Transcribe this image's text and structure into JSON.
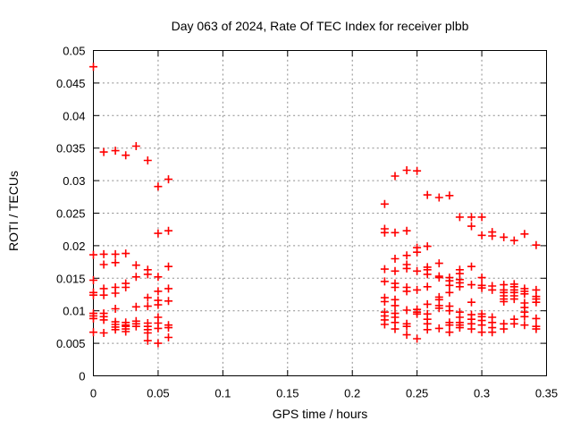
{
  "chart_data": {
    "type": "scatter",
    "title": "Day 063 of 2024, Rate Of TEC Index for receiver plbb",
    "xlabel": "GPS time / hours",
    "ylabel": "ROTI / TECUs",
    "xlim": [
      0,
      0.35
    ],
    "ylim": [
      0,
      0.05
    ],
    "grid": true,
    "legend": "none",
    "marker": {
      "shape": "plus",
      "color": "#ff0000",
      "size": 9
    },
    "xticks": [
      {
        "value": 0.0,
        "label": "0"
      },
      {
        "value": 0.05,
        "label": "0.05"
      },
      {
        "value": 0.1,
        "label": "0.1"
      },
      {
        "value": 0.15,
        "label": "0.15"
      },
      {
        "value": 0.2,
        "label": "0.2"
      },
      {
        "value": 0.25,
        "label": "0.25"
      },
      {
        "value": 0.3,
        "label": "0.3"
      },
      {
        "value": 0.35,
        "label": "0.35"
      }
    ],
    "yticks": [
      {
        "value": 0.0,
        "label": "0"
      },
      {
        "value": 0.005,
        "label": "0.005"
      },
      {
        "value": 0.01,
        "label": "0.01"
      },
      {
        "value": 0.015,
        "label": "0.015"
      },
      {
        "value": 0.02,
        "label": "0.02"
      },
      {
        "value": 0.025,
        "label": "0.025"
      },
      {
        "value": 0.03,
        "label": "0.03"
      },
      {
        "value": 0.035,
        "label": "0.035"
      },
      {
        "value": 0.04,
        "label": "0.04"
      },
      {
        "value": 0.045,
        "label": "0.045"
      },
      {
        "value": 0.05,
        "label": "0.05"
      }
    ],
    "series": [
      {
        "name": "ROTI",
        "points": [
          [
            0.0,
            0.0475
          ],
          [
            0.0,
            0.0186
          ],
          [
            0.0,
            0.0147
          ],
          [
            0.0,
            0.0128
          ],
          [
            0.0,
            0.0124
          ],
          [
            0.0,
            0.0096
          ],
          [
            0.0,
            0.0092
          ],
          [
            0.0,
            0.0088
          ],
          [
            0.0,
            0.0067
          ],
          [
            0.008,
            0.0344
          ],
          [
            0.008,
            0.0187
          ],
          [
            0.008,
            0.0171
          ],
          [
            0.008,
            0.0134
          ],
          [
            0.008,
            0.0124
          ],
          [
            0.008,
            0.0096
          ],
          [
            0.008,
            0.0091
          ],
          [
            0.008,
            0.0086
          ],
          [
            0.008,
            0.0066
          ],
          [
            0.017,
            0.0346
          ],
          [
            0.017,
            0.0187
          ],
          [
            0.017,
            0.0174
          ],
          [
            0.017,
            0.0136
          ],
          [
            0.017,
            0.0127
          ],
          [
            0.017,
            0.0103
          ],
          [
            0.017,
            0.0083
          ],
          [
            0.017,
            0.0079
          ],
          [
            0.017,
            0.0075
          ],
          [
            0.017,
            0.0071
          ],
          [
            0.025,
            0.0339
          ],
          [
            0.025,
            0.0188
          ],
          [
            0.025,
            0.0142
          ],
          [
            0.025,
            0.0136
          ],
          [
            0.025,
            0.0082
          ],
          [
            0.025,
            0.0078
          ],
          [
            0.025,
            0.0076
          ],
          [
            0.025,
            0.0072
          ],
          [
            0.025,
            0.0068
          ],
          [
            0.033,
            0.0353
          ],
          [
            0.033,
            0.017
          ],
          [
            0.033,
            0.0152
          ],
          [
            0.033,
            0.0106
          ],
          [
            0.033,
            0.0084
          ],
          [
            0.033,
            0.008
          ],
          [
            0.033,
            0.0076
          ],
          [
            0.042,
            0.0331
          ],
          [
            0.042,
            0.0163
          ],
          [
            0.042,
            0.0156
          ],
          [
            0.042,
            0.012
          ],
          [
            0.042,
            0.0107
          ],
          [
            0.042,
            0.0081
          ],
          [
            0.042,
            0.0076
          ],
          [
            0.042,
            0.0071
          ],
          [
            0.042,
            0.0066
          ],
          [
            0.042,
            0.0054
          ],
          [
            0.05,
            0.0291
          ],
          [
            0.05,
            0.0219
          ],
          [
            0.05,
            0.0152
          ],
          [
            0.05,
            0.013
          ],
          [
            0.05,
            0.0116
          ],
          [
            0.05,
            0.0109
          ],
          [
            0.05,
            0.009
          ],
          [
            0.05,
            0.0081
          ],
          [
            0.05,
            0.0073
          ],
          [
            0.05,
            0.005
          ],
          [
            0.058,
            0.0302
          ],
          [
            0.058,
            0.0223
          ],
          [
            0.058,
            0.0168
          ],
          [
            0.058,
            0.0134
          ],
          [
            0.058,
            0.0115
          ],
          [
            0.058,
            0.0078
          ],
          [
            0.058,
            0.0074
          ],
          [
            0.058,
            0.0059
          ],
          [
            0.225,
            0.0264
          ],
          [
            0.225,
            0.0226
          ],
          [
            0.225,
            0.022
          ],
          [
            0.225,
            0.0164
          ],
          [
            0.225,
            0.0145
          ],
          [
            0.225,
            0.012
          ],
          [
            0.225,
            0.0114
          ],
          [
            0.225,
            0.0098
          ],
          [
            0.225,
            0.0092
          ],
          [
            0.225,
            0.0086
          ],
          [
            0.225,
            0.0079
          ],
          [
            0.233,
            0.0307
          ],
          [
            0.233,
            0.022
          ],
          [
            0.233,
            0.018
          ],
          [
            0.233,
            0.0161
          ],
          [
            0.233,
            0.0142
          ],
          [
            0.233,
            0.0136
          ],
          [
            0.233,
            0.0117
          ],
          [
            0.233,
            0.0108
          ],
          [
            0.233,
            0.0096
          ],
          [
            0.233,
            0.009
          ],
          [
            0.233,
            0.0082
          ],
          [
            0.233,
            0.0072
          ],
          [
            0.242,
            0.0316
          ],
          [
            0.242,
            0.0223
          ],
          [
            0.242,
            0.0185
          ],
          [
            0.242,
            0.0171
          ],
          [
            0.242,
            0.0165
          ],
          [
            0.242,
            0.0136
          ],
          [
            0.242,
            0.013
          ],
          [
            0.242,
            0.0101
          ],
          [
            0.242,
            0.008
          ],
          [
            0.242,
            0.0076
          ],
          [
            0.242,
            0.0063
          ],
          [
            0.25,
            0.0315
          ],
          [
            0.25,
            0.0197
          ],
          [
            0.25,
            0.019
          ],
          [
            0.25,
            0.0161
          ],
          [
            0.25,
            0.0132
          ],
          [
            0.25,
            0.0102
          ],
          [
            0.25,
            0.0098
          ],
          [
            0.25,
            0.0095
          ],
          [
            0.25,
            0.0057
          ],
          [
            0.258,
            0.0278
          ],
          [
            0.258,
            0.0199
          ],
          [
            0.258,
            0.0167
          ],
          [
            0.258,
            0.0163
          ],
          [
            0.258,
            0.0156
          ],
          [
            0.258,
            0.0137
          ],
          [
            0.258,
            0.011
          ],
          [
            0.258,
            0.0095
          ],
          [
            0.258,
            0.0087
          ],
          [
            0.258,
            0.008
          ],
          [
            0.258,
            0.0071
          ],
          [
            0.267,
            0.0274
          ],
          [
            0.267,
            0.0173
          ],
          [
            0.267,
            0.0153
          ],
          [
            0.267,
            0.0151
          ],
          [
            0.267,
            0.0121
          ],
          [
            0.267,
            0.0117
          ],
          [
            0.267,
            0.0108
          ],
          [
            0.267,
            0.0104
          ],
          [
            0.267,
            0.0073
          ],
          [
            0.275,
            0.0277
          ],
          [
            0.275,
            0.0151
          ],
          [
            0.275,
            0.0146
          ],
          [
            0.275,
            0.0139
          ],
          [
            0.275,
            0.0128
          ],
          [
            0.275,
            0.0107
          ],
          [
            0.275,
            0.01
          ],
          [
            0.275,
            0.0082
          ],
          [
            0.275,
            0.0078
          ],
          [
            0.275,
            0.0067
          ],
          [
            0.283,
            0.0244
          ],
          [
            0.283,
            0.0163
          ],
          [
            0.283,
            0.0157
          ],
          [
            0.283,
            0.0148
          ],
          [
            0.283,
            0.0143
          ],
          [
            0.283,
            0.0137
          ],
          [
            0.283,
            0.0098
          ],
          [
            0.283,
            0.009
          ],
          [
            0.283,
            0.0082
          ],
          [
            0.283,
            0.0078
          ],
          [
            0.283,
            0.0074
          ],
          [
            0.292,
            0.0244
          ],
          [
            0.292,
            0.023
          ],
          [
            0.292,
            0.0168
          ],
          [
            0.292,
            0.014
          ],
          [
            0.292,
            0.0113
          ],
          [
            0.292,
            0.0094
          ],
          [
            0.292,
            0.0087
          ],
          [
            0.292,
            0.008
          ],
          [
            0.292,
            0.0072
          ],
          [
            0.3,
            0.0244
          ],
          [
            0.3,
            0.0216
          ],
          [
            0.3,
            0.0151
          ],
          [
            0.3,
            0.0139
          ],
          [
            0.3,
            0.0135
          ],
          [
            0.3,
            0.0095
          ],
          [
            0.3,
            0.0091
          ],
          [
            0.3,
            0.0085
          ],
          [
            0.3,
            0.0078
          ],
          [
            0.3,
            0.0067
          ],
          [
            0.308,
            0.0221
          ],
          [
            0.308,
            0.0215
          ],
          [
            0.308,
            0.0138
          ],
          [
            0.308,
            0.0132
          ],
          [
            0.308,
            0.009
          ],
          [
            0.308,
            0.0082
          ],
          [
            0.308,
            0.0074
          ],
          [
            0.308,
            0.0067
          ],
          [
            0.317,
            0.0213
          ],
          [
            0.317,
            0.014
          ],
          [
            0.317,
            0.0132
          ],
          [
            0.317,
            0.0128
          ],
          [
            0.317,
            0.0123
          ],
          [
            0.317,
            0.0118
          ],
          [
            0.317,
            0.0114
          ],
          [
            0.317,
            0.008
          ],
          [
            0.317,
            0.0072
          ],
          [
            0.325,
            0.0208
          ],
          [
            0.325,
            0.0141
          ],
          [
            0.325,
            0.0137
          ],
          [
            0.325,
            0.0132
          ],
          [
            0.325,
            0.0128
          ],
          [
            0.325,
            0.0123
          ],
          [
            0.325,
            0.0118
          ],
          [
            0.325,
            0.0087
          ],
          [
            0.325,
            0.008
          ],
          [
            0.333,
            0.0218
          ],
          [
            0.333,
            0.0134
          ],
          [
            0.333,
            0.013
          ],
          [
            0.333,
            0.0126
          ],
          [
            0.333,
            0.0112
          ],
          [
            0.333,
            0.0105
          ],
          [
            0.333,
            0.0098
          ],
          [
            0.333,
            0.0091
          ],
          [
            0.333,
            0.0078
          ],
          [
            0.342,
            0.0201
          ],
          [
            0.342,
            0.0132
          ],
          [
            0.342,
            0.0122
          ],
          [
            0.342,
            0.0118
          ],
          [
            0.342,
            0.0113
          ],
          [
            0.342,
            0.0088
          ],
          [
            0.342,
            0.0076
          ],
          [
            0.342,
            0.0072
          ]
        ]
      }
    ]
  }
}
